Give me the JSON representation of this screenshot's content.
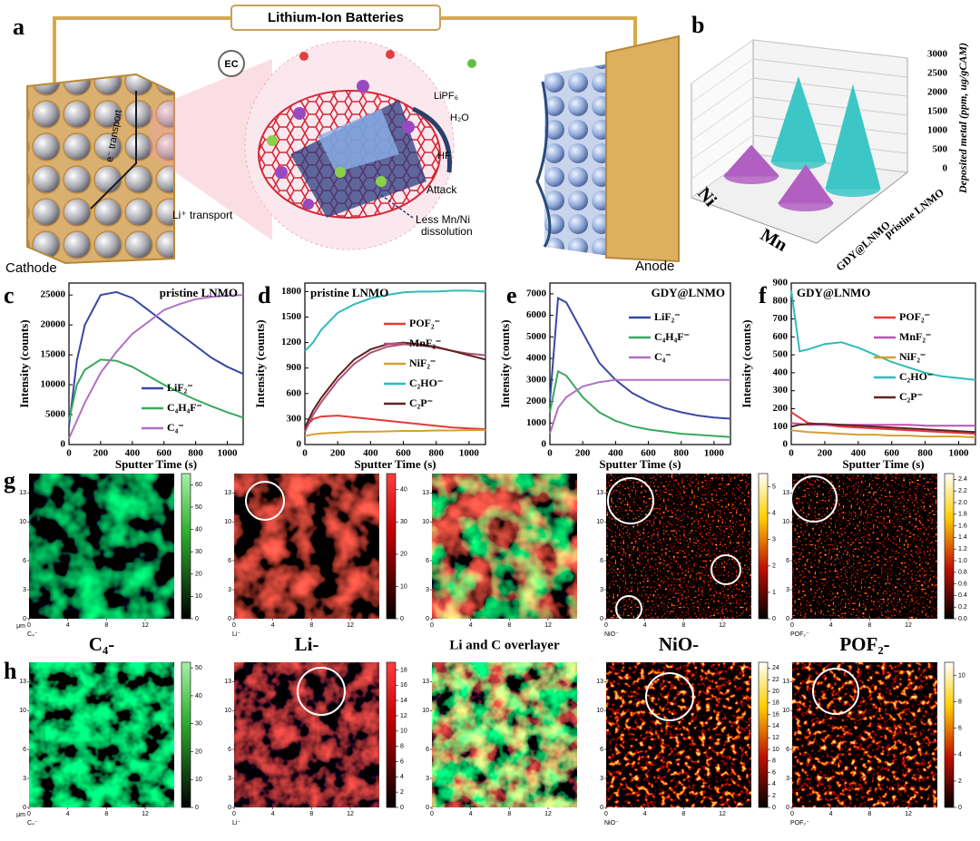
{
  "figure": {
    "panel_labels": [
      "a",
      "b",
      "c",
      "d",
      "e",
      "f",
      "g",
      "h"
    ]
  },
  "diagram": {
    "title": "Lithium-Ion Batteries",
    "cathode": "Cathode",
    "anode": "Anode",
    "e_transport": "e⁻ transport",
    "li_transport": "Li⁺ transport",
    "ec": "EC",
    "lipf6": "LiPF₆",
    "h2o": "H₂O",
    "hf": "HF",
    "attack": "Attack",
    "dissolution": [
      "Less Mn/Ni",
      "dissolution"
    ]
  },
  "chart_data": [
    {
      "type": "cone",
      "ylabel": "Deposited metal (ppm, ug/gCAM)",
      "categories": [
        "Ni",
        "Mn"
      ],
      "series": [
        {
          "name": "pristine LNMO",
          "color": "#3cc6c6",
          "values": [
            2200,
            2700
          ]
        },
        {
          "name": "GDY@LNMO",
          "color": "#b25fc2",
          "values": [
            800,
            1000
          ]
        }
      ],
      "ylim": [
        0,
        3000
      ],
      "yticks": [
        0,
        500,
        1000,
        1500,
        2000,
        2500,
        3000
      ]
    },
    {
      "type": "line",
      "title": "pristine LNMO",
      "title_loc": "right",
      "legend": "lower right",
      "xlabel": "Sputter Time (s)",
      "ylabel": "Intensity (counts)",
      "x": [
        0,
        50,
        100,
        200,
        300,
        400,
        500,
        600,
        700,
        800,
        900,
        1000,
        1100
      ],
      "xlim": [
        0,
        1100
      ],
      "xticks": [
        0,
        200,
        400,
        600,
        800,
        1000
      ],
      "ylim": [
        0,
        27000
      ],
      "yticks": [
        0,
        5000,
        10000,
        15000,
        20000,
        25000
      ],
      "series": [
        {
          "name": "LiF₂⁻",
          "color": "#3a48a0",
          "values": [
            3000,
            14000,
            20000,
            25000,
            25500,
            24500,
            22500,
            20500,
            18500,
            16500,
            14500,
            13000,
            11800
          ]
        },
        {
          "name": "C₄H₄F⁻",
          "color": "#3aa85e",
          "values": [
            4000,
            10000,
            12500,
            14200,
            14000,
            13000,
            11500,
            10000,
            8700,
            7500,
            6400,
            5400,
            4500
          ]
        },
        {
          "name": "C₄⁻",
          "color": "#b070c4",
          "values": [
            1000,
            4000,
            7000,
            12000,
            15500,
            18500,
            20500,
            22500,
            23500,
            24300,
            24700,
            24900,
            25000
          ]
        }
      ]
    },
    {
      "type": "line",
      "title": "pristine LNMO",
      "title_loc": "left",
      "legend": "center right",
      "xlabel": "Sputter Time (s)",
      "ylabel": "Intensity (counts)",
      "x": [
        0,
        50,
        100,
        200,
        300,
        400,
        500,
        600,
        700,
        800,
        900,
        1000,
        1100
      ],
      "xlim": [
        0,
        1100
      ],
      "xticks": [
        0,
        200,
        400,
        600,
        800,
        1000
      ],
      "ylim": [
        0,
        1900
      ],
      "yticks": [
        0,
        300,
        600,
        900,
        1200,
        1500,
        1800
      ],
      "series": [
        {
          "name": "POF₂⁻",
          "color": "#e03a3a",
          "values": [
            200,
            300,
            330,
            340,
            320,
            300,
            280,
            260,
            240,
            220,
            200,
            190,
            180
          ]
        },
        {
          "name": "MnF₂⁻",
          "color": "#b0507a",
          "values": [
            150,
            350,
            500,
            750,
            950,
            1080,
            1150,
            1180,
            1170,
            1140,
            1100,
            1070,
            1050
          ]
        },
        {
          "name": "NiF₂⁻",
          "color": "#d4a030",
          "values": [
            100,
            120,
            130,
            140,
            150,
            150,
            155,
            160,
            160,
            165,
            165,
            170,
            170
          ]
        },
        {
          "name": "C₂HO⁻",
          "color": "#2fbcbc",
          "values": [
            1100,
            1200,
            1350,
            1550,
            1650,
            1720,
            1760,
            1790,
            1800,
            1800,
            1810,
            1810,
            1800
          ]
        },
        {
          "name": "C₂P⁻",
          "color": "#602222",
          "values": [
            200,
            400,
            550,
            800,
            1000,
            1120,
            1180,
            1200,
            1180,
            1150,
            1100,
            1050,
            1000
          ]
        }
      ]
    },
    {
      "type": "line",
      "title": "GDY@LNMO",
      "title_loc": "right",
      "legend": "upper right",
      "xlabel": "Sputter Time (s)",
      "ylabel": "Intensity (counts)",
      "x": [
        0,
        50,
        100,
        200,
        300,
        400,
        500,
        600,
        700,
        800,
        900,
        1000,
        1100
      ],
      "xlim": [
        0,
        1100
      ],
      "xticks": [
        0,
        200,
        400,
        600,
        800,
        1000
      ],
      "ylim": [
        0,
        7500
      ],
      "yticks": [
        0,
        1000,
        2000,
        3000,
        4000,
        5000,
        6000,
        7000
      ],
      "series": [
        {
          "name": "LiF₂⁻",
          "color": "#3a48a0",
          "values": [
            2000,
            6800,
            6600,
            5200,
            3800,
            3000,
            2400,
            2000,
            1700,
            1500,
            1350,
            1250,
            1200
          ]
        },
        {
          "name": "C₄H₄F⁻",
          "color": "#3aa85e",
          "values": [
            1500,
            3400,
            3200,
            2200,
            1500,
            1100,
            850,
            700,
            600,
            500,
            450,
            400,
            350
          ]
        },
        {
          "name": "C₄⁻",
          "color": "#b070c4",
          "values": [
            500,
            1700,
            2200,
            2700,
            2900,
            3000,
            3000,
            3000,
            3000,
            3000,
            3000,
            3000,
            3000
          ]
        }
      ]
    },
    {
      "type": "line",
      "title": "GDY@LNMO",
      "title_loc": "left",
      "legend": "upper right",
      "xlabel": "Sputter Time (s)",
      "ylabel": "Intensity (counts)",
      "x": [
        0,
        50,
        100,
        200,
        300,
        400,
        500,
        600,
        700,
        800,
        900,
        1000,
        1100
      ],
      "xlim": [
        0,
        1100
      ],
      "xticks": [
        0,
        200,
        400,
        600,
        800,
        1000
      ],
      "ylim": [
        0,
        900
      ],
      "yticks": [
        0,
        100,
        200,
        300,
        400,
        500,
        600,
        700,
        800,
        900
      ],
      "series": [
        {
          "name": "POF₂⁻",
          "color": "#e03a3a",
          "values": [
            180,
            150,
            120,
            110,
            100,
            95,
            90,
            85,
            80,
            75,
            70,
            65,
            60
          ]
        },
        {
          "name": "MnF₂⁻",
          "color": "#c050b0",
          "values": [
            120,
            115,
            110,
            110,
            110,
            110,
            110,
            110,
            110,
            105,
            105,
            105,
            105
          ]
        },
        {
          "name": "NiF₂⁻",
          "color": "#d4a030",
          "values": [
            80,
            75,
            70,
            65,
            60,
            55,
            55,
            50,
            50,
            45,
            45,
            45,
            40
          ]
        },
        {
          "name": "C₂HO⁻",
          "color": "#2fbcbc",
          "values": [
            860,
            520,
            530,
            560,
            570,
            540,
            500,
            460,
            430,
            400,
            380,
            370,
            360
          ]
        },
        {
          "name": "C₂P⁻",
          "color": "#602222",
          "values": [
            100,
            110,
            115,
            115,
            110,
            105,
            100,
            95,
            90,
            85,
            80,
            75,
            70
          ]
        }
      ]
    }
  ],
  "maps": {
    "unit": "μm",
    "xlim": [
      0,
      15
    ],
    "ylim": [
      0,
      15
    ],
    "xticks": [
      0,
      4,
      8,
      12
    ],
    "yticks": [
      0,
      3,
      6,
      10,
      13
    ],
    "titles": [
      "C₄-",
      "Li-",
      "Li and C overlayer",
      "NiO-",
      "POF₂-"
    ],
    "rows": [
      {
        "panels": [
          {
            "label": "C₄⁻",
            "colormap": "green",
            "clim": [
              0,
              65
            ],
            "cbar": [
              0,
              10,
              20,
              30,
              40,
              50,
              60
            ]
          },
          {
            "label": "Li⁻",
            "colormap": "red",
            "clim": [
              0,
              45
            ],
            "cbar": [
              0,
              10,
              20,
              30,
              40
            ]
          },
          {
            "colormap": "overlay"
          },
          {
            "label": "NiO⁻",
            "colormap": "hot",
            "clim": [
              0,
              5.5
            ],
            "cbar": [
              0,
              1,
              2,
              3,
              4,
              5
            ]
          },
          {
            "label": "POF₂⁻",
            "colormap": "hot",
            "clim": [
              0,
              2.5
            ],
            "cbar": [
              {
                "value": 0,
                "label": "0.0"
              },
              0.2,
              0.4,
              0.6,
              0.8,
              {
                "value": 1,
                "label": "1.0"
              },
              1.2,
              1.4,
              1.6,
              1.8,
              {
                "value": 2,
                "label": "2.0"
              },
              2.2,
              2.4
            ]
          }
        ]
      },
      {
        "panels": [
          {
            "label": "C₄⁻",
            "colormap": "green",
            "clim": [
              0,
              52
            ],
            "cbar": [
              0,
              10,
              20,
              30,
              40,
              50
            ]
          },
          {
            "label": "Li⁻",
            "colormap": "red",
            "clim": [
              0,
              19
            ],
            "cbar": [
              0,
              2,
              4,
              6,
              8,
              10,
              12,
              14,
              16,
              18
            ]
          },
          {
            "colormap": "overlay"
          },
          {
            "label": "NiO⁻",
            "colormap": "hot",
            "clim": [
              0,
              25
            ],
            "cbar": [
              0,
              2,
              4,
              6,
              8,
              10,
              12,
              14,
              16,
              18,
              20,
              22,
              24
            ]
          },
          {
            "label": "POF₂⁻",
            "colormap": "hot",
            "clim": [
              0,
              11
            ],
            "cbar": [
              0,
              2,
              4,
              6,
              8,
              10
            ]
          }
        ]
      }
    ]
  }
}
